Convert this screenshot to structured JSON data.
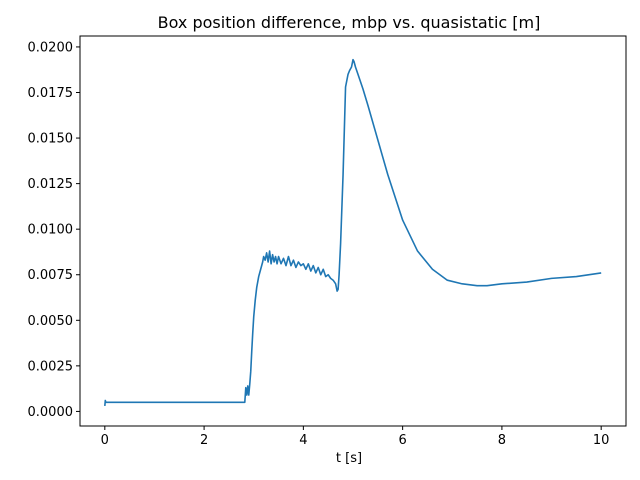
{
  "chart_data": {
    "type": "line",
    "title": "Box position difference,  mbp vs. quasistatic  [m]",
    "xlabel": "t [s]",
    "ylabel": "",
    "xlim": [
      -0.5,
      10.5
    ],
    "ylim": [
      -0.0008,
      0.0206
    ],
    "grid": false,
    "legend": "none",
    "x_ticks": [
      0,
      2,
      4,
      6,
      8,
      10
    ],
    "x_tick_labels": [
      "0",
      "2",
      "4",
      "6",
      "8",
      "10"
    ],
    "y_ticks": [
      0.0,
      0.0025,
      0.005,
      0.0075,
      0.01,
      0.0125,
      0.015,
      0.0175,
      0.02
    ],
    "y_tick_labels": [
      "0.0000",
      "0.0025",
      "0.0050",
      "0.0075",
      "0.0100",
      "0.0125",
      "0.0150",
      "0.0175",
      "0.0200"
    ],
    "series": [
      {
        "color": "#1f77b4",
        "x": [
          0.0,
          0.01,
          0.02,
          0.04,
          0.1,
          0.5,
          1.0,
          1.5,
          2.0,
          2.5,
          2.8,
          2.82,
          2.84,
          2.86,
          2.88,
          2.9,
          2.92,
          2.94,
          2.96,
          2.98,
          3.0,
          3.03,
          3.06,
          3.1,
          3.14,
          3.18,
          3.2,
          3.23,
          3.26,
          3.29,
          3.32,
          3.35,
          3.38,
          3.41,
          3.44,
          3.47,
          3.5,
          3.55,
          3.6,
          3.65,
          3.7,
          3.75,
          3.8,
          3.85,
          3.9,
          3.95,
          4.0,
          4.05,
          4.1,
          4.15,
          4.2,
          4.25,
          4.3,
          4.35,
          4.4,
          4.45,
          4.5,
          4.55,
          4.6,
          4.65,
          4.68,
          4.7,
          4.72,
          4.75,
          4.8,
          4.85,
          4.9,
          4.93,
          4.97,
          5.0,
          5.02,
          5.05,
          5.1,
          5.2,
          5.3,
          5.5,
          5.7,
          6.0,
          6.3,
          6.6,
          6.9,
          7.2,
          7.5,
          7.7,
          8.0,
          8.5,
          9.0,
          9.5,
          10.0
        ],
        "y": [
          0.0003,
          0.0006,
          0.0005,
          0.0005,
          0.0005,
          0.0005,
          0.0005,
          0.0005,
          0.0005,
          0.0005,
          0.0005,
          0.0005,
          0.0013,
          0.0009,
          0.0014,
          0.0009,
          0.0015,
          0.0022,
          0.0033,
          0.0043,
          0.0052,
          0.0061,
          0.0068,
          0.0074,
          0.0078,
          0.0082,
          0.0085,
          0.0083,
          0.0087,
          0.0082,
          0.0088,
          0.0081,
          0.0086,
          0.0082,
          0.0085,
          0.0081,
          0.0085,
          0.0081,
          0.0084,
          0.008,
          0.0085,
          0.008,
          0.0083,
          0.0079,
          0.0082,
          0.008,
          0.0081,
          0.0078,
          0.0081,
          0.0077,
          0.008,
          0.0076,
          0.0079,
          0.0075,
          0.0078,
          0.0074,
          0.0075,
          0.0073,
          0.0072,
          0.007,
          0.0066,
          0.0067,
          0.0075,
          0.0092,
          0.013,
          0.0178,
          0.0185,
          0.0187,
          0.0189,
          0.0193,
          0.0192,
          0.0189,
          0.0185,
          0.0177,
          0.0168,
          0.0149,
          0.013,
          0.0105,
          0.0088,
          0.0078,
          0.0072,
          0.007,
          0.0069,
          0.0069,
          0.007,
          0.0071,
          0.0073,
          0.0074,
          0.0076
        ]
      }
    ]
  }
}
